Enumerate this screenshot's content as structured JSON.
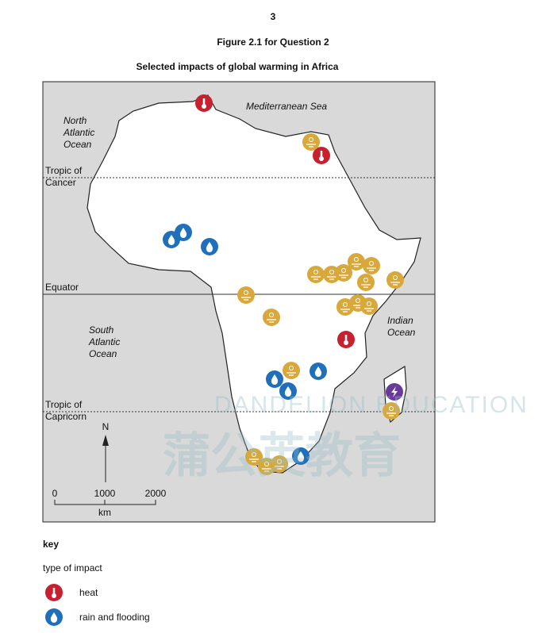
{
  "header": {
    "page_number": "3",
    "figure": "Figure 2.1 for Question 2",
    "title": "Selected impacts of global warming in Africa"
  },
  "map": {
    "labels": {
      "mediterranean": [
        "Mediterranean Sea"
      ],
      "north_atlantic": [
        "North",
        "Atlantic",
        "Ocean"
      ],
      "south_atlantic": [
        "South",
        "Atlantic",
        "Ocean"
      ],
      "indian": [
        "Indian",
        "Ocean"
      ],
      "tropic_cancer": [
        "Tropic of",
        "Cancer"
      ],
      "equator": [
        "Equator"
      ],
      "tropic_capricorn": [
        "Tropic of",
        "Capricorn"
      ]
    },
    "north": "N",
    "scale": {
      "ticks": [
        "0",
        "1000",
        "2000"
      ],
      "unit": "km"
    }
  },
  "key": {
    "title": "key",
    "subtitle": "type of impact",
    "items": [
      "heat",
      "rain and flooding"
    ]
  },
  "watermark": {
    "latin": "DANDELION EDUCATION",
    "chinese": "蒲公英教育"
  }
}
